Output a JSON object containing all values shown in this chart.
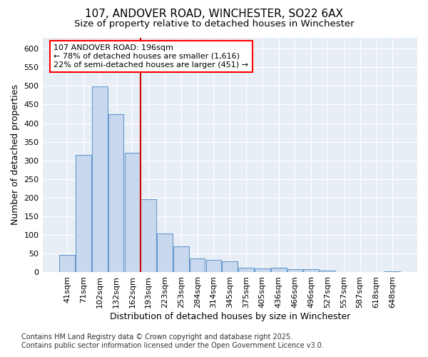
{
  "title_line1": "107, ANDOVER ROAD, WINCHESTER, SO22 6AX",
  "title_line2": "Size of property relative to detached houses in Winchester",
  "xlabel": "Distribution of detached houses by size in Winchester",
  "ylabel": "Number of detached properties",
  "categories": [
    "41sqm",
    "71sqm",
    "102sqm",
    "132sqm",
    "162sqm",
    "193sqm",
    "223sqm",
    "253sqm",
    "284sqm",
    "314sqm",
    "345sqm",
    "375sqm",
    "405sqm",
    "436sqm",
    "466sqm",
    "496sqm",
    "527sqm",
    "557sqm",
    "587sqm",
    "618sqm",
    "648sqm"
  ],
  "values": [
    46,
    315,
    498,
    424,
    320,
    196,
    105,
    70,
    38,
    33,
    30,
    13,
    11,
    12,
    8,
    8,
    5,
    1,
    0,
    0,
    3
  ],
  "bar_color": "#c8d8ee",
  "bar_edge_color": "#6699cc",
  "vline_color": "#cc0000",
  "vline_x_index": 5,
  "annotation_box_text": "107 ANDOVER ROAD: 196sqm\n← 78% of detached houses are smaller (1,616)\n22% of semi-detached houses are larger (451) →",
  "ylim": [
    0,
    630
  ],
  "yticks": [
    0,
    50,
    100,
    150,
    200,
    250,
    300,
    350,
    400,
    450,
    500,
    550,
    600
  ],
  "footer_line1": "Contains HM Land Registry data © Crown copyright and database right 2025.",
  "footer_line2": "Contains public sector information licensed under the Open Government Licence v3.0.",
  "fig_bg_color": "#ffffff",
  "plot_bg_color": "#e8eef5",
  "grid_color": "#ffffff",
  "title_fontsize": 11,
  "subtitle_fontsize": 9.5,
  "axis_label_fontsize": 9,
  "tick_fontsize": 8,
  "annotation_fontsize": 8,
  "footer_fontsize": 7
}
